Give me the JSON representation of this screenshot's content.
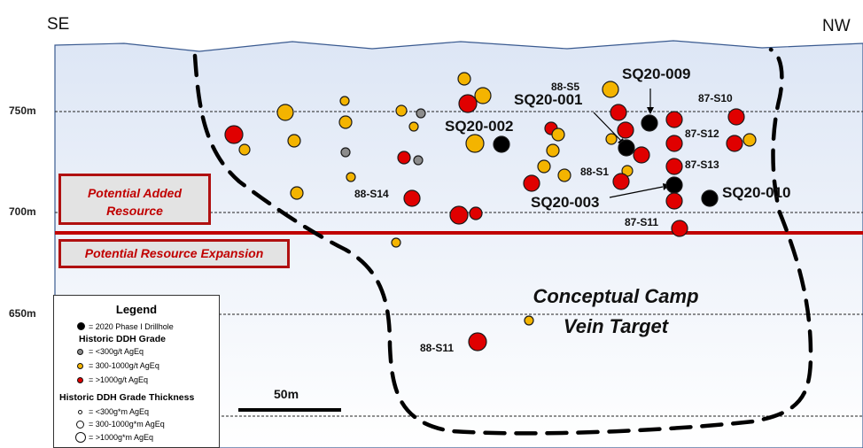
{
  "header": {
    "left_dir": "SE",
    "right_dir": "NW"
  },
  "elevations": [
    "750m",
    "700m",
    "650m"
  ],
  "zones": {
    "added": "Potential Added Resource",
    "expansion": "Potential Resource Expansion"
  },
  "target": {
    "line1": "Conceptual Camp",
    "line2": "Vein Target"
  },
  "scale": {
    "label": "50m"
  },
  "drillholes_2020": [
    "SQ20-001",
    "SQ20-002",
    "SQ20-003",
    "SQ20-009",
    "SQ20-010"
  ],
  "historic_labels": [
    "88-S5",
    "87-S10",
    "87-S12",
    "88-S1",
    "87-S13",
    "88-S14",
    "87-S11",
    "88-S11"
  ],
  "legend": {
    "title": "Legend",
    "phase": "= 2020 Phase I Drillhole",
    "grade_head": "Historic DDH Grade",
    "grade_low": "= <300g/t AgEq",
    "grade_mid": "= 300-1000g/t AgEq",
    "grade_high": "= >1000g/t AgEq",
    "thick_head": "Historic DDH Grade Thickness",
    "thick_low": "= <300g*m AgEq",
    "thick_mid": "= 300-1000g*m AgEq",
    "thick_high": "= >1000g*m AgEq"
  },
  "colors": {
    "phase_2020": "#000000",
    "grade_low": "#8c8c8c",
    "grade_mid": "#f4b400",
    "grade_high": "#e00000",
    "expansion_line": "#c00000",
    "section_fill": "#e6edf8"
  }
}
